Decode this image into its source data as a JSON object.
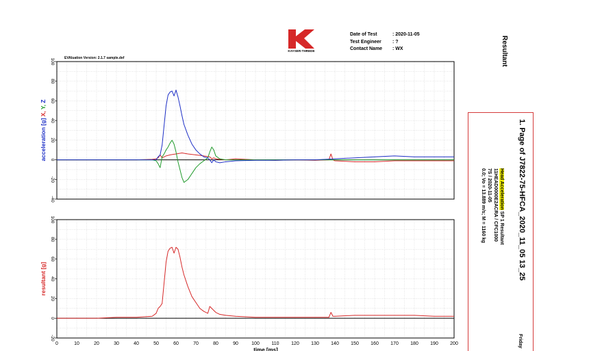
{
  "header": {
    "logo_text": "KAYSER-THREDE",
    "fields": [
      {
        "label": "Date of Test",
        "value": ": 2020-11-05"
      },
      {
        "label": "Test Engineer",
        "value": ": ?"
      },
      {
        "label": "Contact Name",
        "value": ": WX"
      }
    ],
    "eval_version": "EVAluation Version: 2.1.7 sample.def"
  },
  "side_panel": {
    "title": "Resultant",
    "page_title": "1. Page of J7822-75-HFCA_2020_11_05 13_25",
    "channel_name_highlight": "Head Acceleration",
    "channel_name_rest": " SP 1 Resultant",
    "line2": "11HEAD0000E2ACRA / CFC1000",
    "line3": "7S / 2020-11-05",
    "line4": "0.0; Vo = 13.889 m/s; M = 1160 kg",
    "footer": "Friday"
  },
  "colors": {
    "x": "#d62828",
    "y": "#1f9a2a",
    "z": "#1c2ec6",
    "resultant": "#d62828",
    "infobox_border": "#d43a3a",
    "highlight": "#f4f20a",
    "logo": "#d62828"
  },
  "chart_data": [
    {
      "type": "line",
      "ylabel": "acceleration [g]",
      "ylabel_series": [
        "X",
        "Y",
        "Z"
      ],
      "xlim": [
        0,
        200
      ],
      "ylim": [
        -40,
        100
      ],
      "xticks": [
        0,
        10,
        20,
        30,
        40,
        50,
        60,
        70,
        80,
        90,
        100,
        110,
        120,
        130,
        140,
        150,
        160,
        170,
        180,
        190,
        200
      ],
      "yticks": [
        -40,
        -20,
        0,
        20,
        40,
        60,
        80,
        100
      ],
      "grid": true,
      "series": [
        {
          "name": "X",
          "color": "#d62828",
          "x": [
            0,
            20,
            40,
            48,
            50,
            51,
            52,
            53,
            54,
            55,
            57,
            60,
            63,
            66,
            70,
            74,
            77,
            78,
            79,
            80,
            82,
            85,
            90,
            100,
            110,
            120,
            130,
            137,
            138,
            139,
            140,
            150,
            160,
            170,
            180,
            190,
            200
          ],
          "y": [
            0,
            0,
            0,
            0.5,
            1,
            2,
            5,
            2,
            3,
            4,
            5,
            6,
            7,
            6,
            5,
            4,
            3,
            1,
            2,
            1,
            0.5,
            0,
            1,
            0,
            -0.5,
            0,
            -0.5,
            0,
            6,
            0,
            -1,
            -2,
            -2,
            -1,
            -1,
            -1,
            -1
          ]
        },
        {
          "name": "Y",
          "color": "#1f9a2a",
          "x": [
            0,
            20,
            40,
            48,
            50,
            51,
            52,
            53,
            54,
            55,
            56,
            57,
            58,
            59,
            60,
            61,
            62,
            63,
            64,
            66,
            68,
            70,
            72,
            74,
            76,
            77,
            78,
            79,
            80,
            82,
            85,
            90,
            100,
            120,
            140,
            160,
            180,
            200
          ],
          "y": [
            0,
            0,
            0,
            0,
            -1,
            -4,
            -8,
            3,
            6,
            10,
            13,
            17,
            20,
            16,
            8,
            -2,
            -10,
            -18,
            -23,
            -20,
            -14,
            -8,
            -4,
            -1,
            2,
            8,
            13,
            10,
            4,
            1,
            0,
            0,
            0,
            0,
            0,
            0,
            0,
            0
          ]
        },
        {
          "name": "Z",
          "color": "#1c2ec6",
          "x": [
            0,
            20,
            40,
            48,
            50,
            51,
            52,
            53,
            54,
            55,
            56,
            57,
            58,
            59,
            60,
            61,
            62,
            63,
            64,
            66,
            68,
            70,
            72,
            74,
            76,
            77,
            78,
            79,
            80,
            82,
            85,
            90,
            100,
            110,
            120,
            130,
            140,
            150,
            160,
            170,
            180,
            190,
            200
          ],
          "y": [
            0,
            0,
            0,
            0,
            0,
            3,
            5,
            15,
            35,
            55,
            66,
            69,
            70,
            65,
            71,
            64,
            55,
            45,
            36,
            25,
            16,
            10,
            6,
            3,
            2,
            0,
            -3,
            0,
            -2,
            -3,
            -2,
            -1,
            -0.5,
            -0.5,
            0,
            0,
            1,
            2,
            3,
            4,
            3,
            3,
            3
          ]
        }
      ]
    },
    {
      "type": "line",
      "xlabel": "time [ms]",
      "ylabel": "resultant [g]",
      "xlim": [
        0,
        200
      ],
      "ylim": [
        -20,
        100
      ],
      "xticks": [
        0,
        10,
        20,
        30,
        40,
        50,
        60,
        70,
        80,
        90,
        100,
        110,
        120,
        130,
        140,
        150,
        160,
        170,
        180,
        190,
        200
      ],
      "yticks": [
        -20,
        0,
        20,
        40,
        60,
        80,
        100
      ],
      "grid": true,
      "series": [
        {
          "name": "resultant",
          "color": "#d62828",
          "x": [
            0,
            20,
            30,
            40,
            48,
            50,
            51,
            52,
            53,
            54,
            55,
            56,
            57,
            58,
            59,
            60,
            61,
            62,
            63,
            64,
            66,
            68,
            70,
            72,
            74,
            76,
            77,
            78,
            79,
            80,
            82,
            85,
            90,
            100,
            110,
            120,
            130,
            137,
            138,
            139,
            140,
            150,
            160,
            170,
            180,
            190,
            200
          ],
          "y": [
            0,
            0,
            1,
            1,
            2,
            5,
            10,
            12,
            15,
            36,
            57,
            68,
            71,
            72,
            66,
            72,
            70,
            62,
            52,
            44,
            32,
            22,
            16,
            10,
            7,
            5,
            12,
            10,
            8,
            6,
            4,
            3,
            2,
            1,
            1,
            1,
            1,
            1,
            6,
            2,
            2,
            3,
            3,
            3,
            3,
            2,
            2
          ]
        }
      ]
    }
  ]
}
